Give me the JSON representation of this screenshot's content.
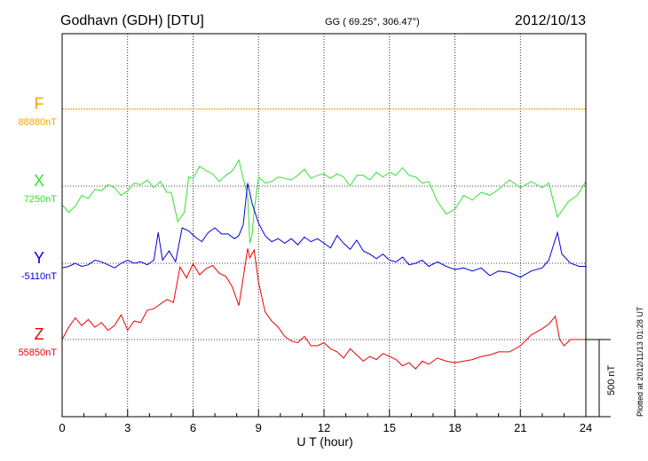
{
  "header": {
    "station": "Godhavn (GDH)  [DTU]",
    "coords": "GG ( 69.25°, 306.47°)",
    "date": "2012/10/13"
  },
  "footer": {
    "plotted": "Plotted at 2012/11/13 01:28 UT",
    "scale_label": "500 nT"
  },
  "colors": {
    "F": "#f0a800",
    "X": "#33e033",
    "Y": "#0000dd",
    "Z": "#ee0000",
    "grid": "#000000",
    "axis": "#000000"
  },
  "chart_data": {
    "type": "line",
    "xlabel": "U T (hour)",
    "xlim": [
      0,
      24
    ],
    "xticks": [
      0,
      3,
      6,
      9,
      12,
      15,
      18,
      21,
      24
    ],
    "scale_bar_nT": 500,
    "series": [
      {
        "name": "F",
        "baseline_label": "88880nT",
        "points": [
          [
            0,
            0
          ],
          [
            24,
            0
          ]
        ]
      },
      {
        "name": "X",
        "baseline_label": "7250nT",
        "points": [
          [
            0,
            -120
          ],
          [
            0.3,
            -170
          ],
          [
            0.6,
            -130
          ],
          [
            0.9,
            -60
          ],
          [
            1.2,
            -80
          ],
          [
            1.5,
            -20
          ],
          [
            1.8,
            -30
          ],
          [
            2.1,
            10
          ],
          [
            2.4,
            -10
          ],
          [
            2.7,
            -60
          ],
          [
            3.0,
            -30
          ],
          [
            3.3,
            20
          ],
          [
            3.6,
            10
          ],
          [
            3.9,
            40
          ],
          [
            4.2,
            -10
          ],
          [
            4.5,
            30
          ],
          [
            4.8,
            -40
          ],
          [
            5.0,
            -40
          ],
          [
            5.3,
            -230
          ],
          [
            5.6,
            -170
          ],
          [
            5.8,
            60
          ],
          [
            6.0,
            50
          ],
          [
            6.3,
            130
          ],
          [
            6.6,
            100
          ],
          [
            6.9,
            80
          ],
          [
            7.2,
            30
          ],
          [
            7.5,
            70
          ],
          [
            7.8,
            100
          ],
          [
            8.1,
            170
          ],
          [
            8.3,
            50
          ],
          [
            8.5,
            -60
          ],
          [
            8.6,
            -370
          ],
          [
            8.7,
            -320
          ],
          [
            8.8,
            -160
          ],
          [
            9.0,
            60
          ],
          [
            9.3,
            20
          ],
          [
            9.6,
            30
          ],
          [
            9.9,
            60
          ],
          [
            10.2,
            50
          ],
          [
            10.5,
            40
          ],
          [
            10.8,
            70
          ],
          [
            11.1,
            110
          ],
          [
            11.4,
            50
          ],
          [
            11.7,
            70
          ],
          [
            12.0,
            80
          ],
          [
            12.3,
            50
          ],
          [
            12.6,
            80
          ],
          [
            12.9,
            60
          ],
          [
            13.2,
            0
          ],
          [
            13.5,
            70
          ],
          [
            13.8,
            70
          ],
          [
            14.1,
            40
          ],
          [
            14.4,
            90
          ],
          [
            14.7,
            60
          ],
          [
            15.0,
            90
          ],
          [
            15.3,
            70
          ],
          [
            15.6,
            120
          ],
          [
            15.9,
            70
          ],
          [
            16.2,
            60
          ],
          [
            16.5,
            20
          ],
          [
            16.8,
            30
          ],
          [
            17.2,
            -100
          ],
          [
            17.6,
            -180
          ],
          [
            18.0,
            -150
          ],
          [
            18.4,
            -60
          ],
          [
            18.8,
            -90
          ],
          [
            19.2,
            -40
          ],
          [
            19.6,
            -60
          ],
          [
            20.0,
            -20
          ],
          [
            20.5,
            40
          ],
          [
            21.0,
            -10
          ],
          [
            21.5,
            30
          ],
          [
            22.0,
            -10
          ],
          [
            22.3,
            20
          ],
          [
            22.7,
            -200
          ],
          [
            22.9,
            -160
          ],
          [
            23.2,
            -100
          ],
          [
            23.6,
            -60
          ],
          [
            24.0,
            30
          ]
        ]
      },
      {
        "name": "Y",
        "baseline_label": "-5110nT",
        "points": [
          [
            0,
            -30
          ],
          [
            0.3,
            -20
          ],
          [
            0.6,
            0
          ],
          [
            0.9,
            -20
          ],
          [
            1.2,
            -10
          ],
          [
            1.5,
            20
          ],
          [
            1.8,
            10
          ],
          [
            2.1,
            -10
          ],
          [
            2.4,
            -30
          ],
          [
            2.7,
            0
          ],
          [
            3.0,
            20
          ],
          [
            3.3,
            0
          ],
          [
            3.6,
            10
          ],
          [
            3.9,
            -10
          ],
          [
            4.2,
            20
          ],
          [
            4.4,
            200
          ],
          [
            4.6,
            20
          ],
          [
            4.9,
            80
          ],
          [
            5.2,
            10
          ],
          [
            5.5,
            230
          ],
          [
            5.8,
            210
          ],
          [
            6.1,
            170
          ],
          [
            6.4,
            140
          ],
          [
            6.7,
            200
          ],
          [
            7.0,
            230
          ],
          [
            7.3,
            190
          ],
          [
            7.6,
            190
          ],
          [
            7.9,
            160
          ],
          [
            8.1,
            180
          ],
          [
            8.3,
            250
          ],
          [
            8.5,
            520
          ],
          [
            8.7,
            390
          ],
          [
            9.0,
            260
          ],
          [
            9.3,
            180
          ],
          [
            9.6,
            140
          ],
          [
            9.9,
            160
          ],
          [
            10.2,
            130
          ],
          [
            10.5,
            160
          ],
          [
            10.8,
            120
          ],
          [
            11.1,
            170
          ],
          [
            11.4,
            140
          ],
          [
            11.7,
            160
          ],
          [
            12.0,
            130
          ],
          [
            12.3,
            100
          ],
          [
            12.6,
            180
          ],
          [
            12.9,
            130
          ],
          [
            13.2,
            90
          ],
          [
            13.5,
            150
          ],
          [
            13.8,
            80
          ],
          [
            14.1,
            60
          ],
          [
            14.4,
            30
          ],
          [
            14.7,
            60
          ],
          [
            15.0,
            20
          ],
          [
            15.3,
            10
          ],
          [
            15.6,
            40
          ],
          [
            15.9,
            -10
          ],
          [
            16.2,
            0
          ],
          [
            16.5,
            20
          ],
          [
            16.8,
            -20
          ],
          [
            17.2,
            10
          ],
          [
            17.6,
            -20
          ],
          [
            18.0,
            -40
          ],
          [
            18.4,
            -30
          ],
          [
            18.8,
            -50
          ],
          [
            19.2,
            -30
          ],
          [
            19.6,
            -80
          ],
          [
            20.0,
            -50
          ],
          [
            20.5,
            -60
          ],
          [
            21.0,
            -90
          ],
          [
            21.5,
            -50
          ],
          [
            22.0,
            -30
          ],
          [
            22.3,
            20
          ],
          [
            22.7,
            200
          ],
          [
            22.9,
            60
          ],
          [
            23.3,
            0
          ],
          [
            23.7,
            -20
          ],
          [
            24.0,
            -20
          ]
        ]
      },
      {
        "name": "Z",
        "baseline_label": "55850nT",
        "points": [
          [
            0,
            0
          ],
          [
            0.3,
            80
          ],
          [
            0.6,
            140
          ],
          [
            0.9,
            90
          ],
          [
            1.2,
            130
          ],
          [
            1.5,
            80
          ],
          [
            1.8,
            110
          ],
          [
            2.1,
            60
          ],
          [
            2.4,
            90
          ],
          [
            2.7,
            160
          ],
          [
            3.0,
            60
          ],
          [
            3.3,
            120
          ],
          [
            3.6,
            110
          ],
          [
            3.9,
            190
          ],
          [
            4.2,
            200
          ],
          [
            4.5,
            230
          ],
          [
            4.8,
            260
          ],
          [
            5.1,
            240
          ],
          [
            5.4,
            470
          ],
          [
            5.7,
            400
          ],
          [
            6.0,
            490
          ],
          [
            6.3,
            420
          ],
          [
            6.6,
            460
          ],
          [
            6.9,
            480
          ],
          [
            7.2,
            430
          ],
          [
            7.5,
            410
          ],
          [
            7.8,
            340
          ],
          [
            8.1,
            220
          ],
          [
            8.3,
            400
          ],
          [
            8.5,
            590
          ],
          [
            8.6,
            530
          ],
          [
            8.8,
            580
          ],
          [
            9.0,
            370
          ],
          [
            9.3,
            180
          ],
          [
            9.6,
            120
          ],
          [
            9.9,
            80
          ],
          [
            10.2,
            20
          ],
          [
            10.5,
            -10
          ],
          [
            10.8,
            -20
          ],
          [
            11.1,
            20
          ],
          [
            11.4,
            -40
          ],
          [
            11.7,
            -40
          ],
          [
            12.0,
            -20
          ],
          [
            12.3,
            -60
          ],
          [
            12.6,
            -80
          ],
          [
            12.9,
            -120
          ],
          [
            13.2,
            -60
          ],
          [
            13.5,
            -100
          ],
          [
            13.8,
            -140
          ],
          [
            14.1,
            -110
          ],
          [
            14.4,
            -130
          ],
          [
            14.7,
            -90
          ],
          [
            15.0,
            -110
          ],
          [
            15.3,
            -130
          ],
          [
            15.6,
            -170
          ],
          [
            15.9,
            -150
          ],
          [
            16.2,
            -190
          ],
          [
            16.5,
            -140
          ],
          [
            16.8,
            -160
          ],
          [
            17.2,
            -120
          ],
          [
            17.6,
            -140
          ],
          [
            18.0,
            -150
          ],
          [
            18.4,
            -140
          ],
          [
            18.8,
            -130
          ],
          [
            19.2,
            -110
          ],
          [
            19.6,
            -100
          ],
          [
            20.0,
            -80
          ],
          [
            20.5,
            -80
          ],
          [
            21.0,
            -40
          ],
          [
            21.5,
            30
          ],
          [
            22.0,
            70
          ],
          [
            22.3,
            100
          ],
          [
            22.6,
            150
          ],
          [
            22.8,
            0
          ],
          [
            23.0,
            -40
          ],
          [
            23.3,
            0
          ],
          [
            23.7,
            0
          ],
          [
            24.0,
            0
          ]
        ]
      }
    ]
  }
}
